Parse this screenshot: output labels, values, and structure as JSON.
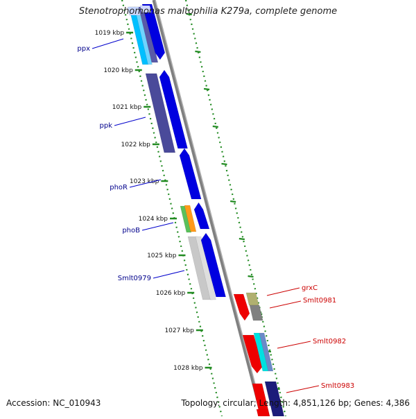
{
  "title": "Stenotrophomonas maltophilia K279a, complete genome",
  "footer": {
    "accession": "Accession: NC_010943",
    "topology": "Topology: circular;",
    "length": "Length: 4,851,126 bp;",
    "genes": "Genes: 4,386"
  },
  "colors": {
    "backbone": "#808080",
    "tick_green": "#228b22",
    "blue_label": "#00008b",
    "red_label": "#cc0000"
  },
  "ticks": [
    {
      "label": "1019 kbp"
    },
    {
      "label": "1020 kbp"
    },
    {
      "label": "1021 kbp"
    },
    {
      "label": "1022 kbp"
    },
    {
      "label": "1023 kbp"
    },
    {
      "label": "1024 kbp"
    },
    {
      "label": "1025 kbp"
    },
    {
      "label": "1026 kbp"
    },
    {
      "label": "1027 kbp"
    },
    {
      "label": "1028 kbp"
    }
  ],
  "left_genes": [
    {
      "label": "ppx"
    },
    {
      "label": "ppk"
    },
    {
      "label": "phoR"
    },
    {
      "label": "phoB"
    },
    {
      "label": "Smlt0979"
    }
  ],
  "right_genes": [
    {
      "label": "grxC"
    },
    {
      "label": "Smlt0981"
    },
    {
      "label": "Smlt0982"
    },
    {
      "label": "Smlt0983"
    }
  ]
}
